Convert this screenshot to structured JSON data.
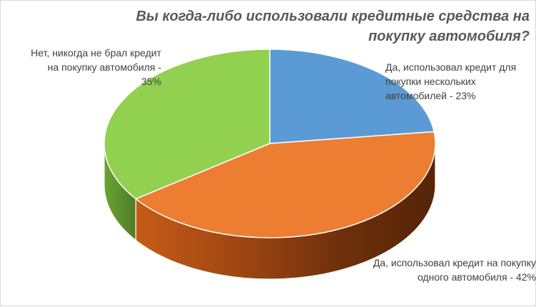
{
  "chart_data": {
    "type": "pie",
    "title": "Вы когда-либо использовали кредитные средства на покупку автомобиля?",
    "slices": [
      {
        "label": "Да, использовал кредит для покупки нескольких автомобилей - 23%",
        "value": 23,
        "color": "#5b9bd5"
      },
      {
        "label": "Да, использовал кредит на покупку одного автомобиля - 42%",
        "value": 42,
        "color": "#ed7d31"
      },
      {
        "label": "Нет, никогда не брал кредит на покупку автомобиля - 35%",
        "value": 35,
        "color": "#92d050"
      }
    ],
    "legend": "none",
    "data_labels": "outside",
    "style": "3d"
  }
}
